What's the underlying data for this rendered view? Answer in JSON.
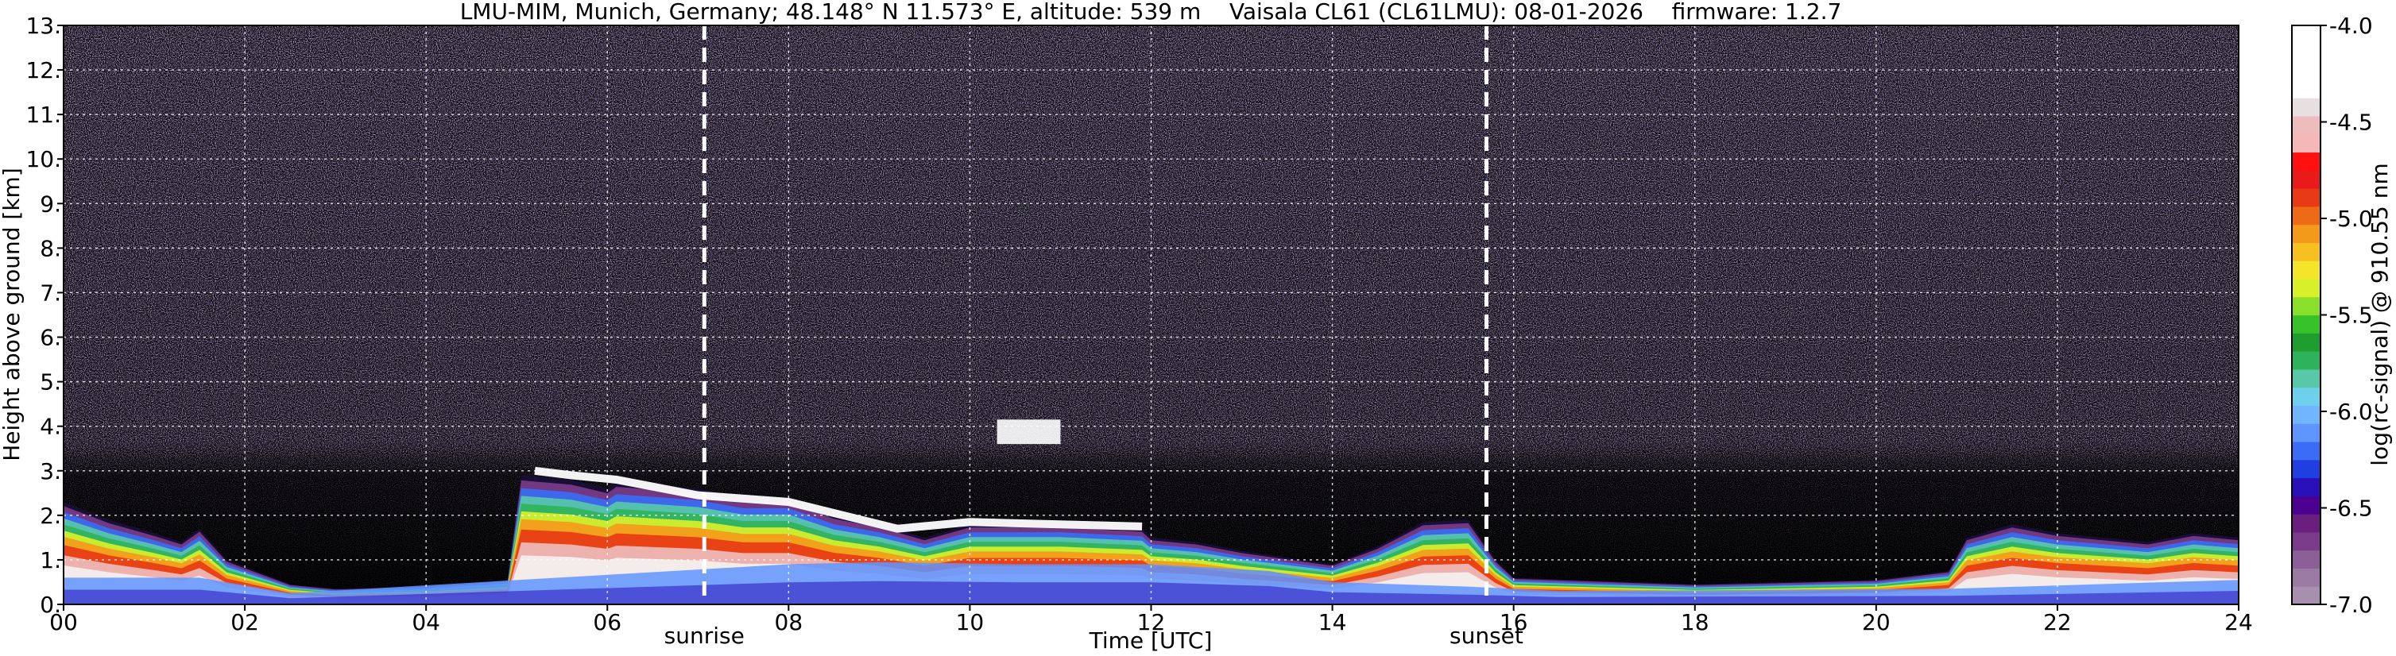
{
  "chart_data": {
    "type": "heatmap",
    "title": "LMU-MIM, Munich, Germany; 48.148° N 11.573° E, altitude: 539 m    Vaisala CL61 (CL61LMU): 08-01-2026    firmware: 1.2.7",
    "xlabel": "Time [UTC]",
    "ylabel": "Height above ground [km]",
    "xlim": [
      0,
      24
    ],
    "ylim": [
      0,
      13
    ],
    "x_ticks": [
      "00",
      "02",
      "04",
      "06",
      "08",
      "10",
      "12",
      "14",
      "16",
      "18",
      "20",
      "22",
      "24"
    ],
    "y_ticks": [
      "0.",
      "1.",
      "2.",
      "3.",
      "4.",
      "5.",
      "6.",
      "7.",
      "8.",
      "9.",
      "10.",
      "11.",
      "12.",
      "13."
    ],
    "grid": true,
    "colorbar": {
      "label": "log(rc-signal) @ 910.55 nm",
      "range": [
        -7.0,
        -4.0
      ],
      "ticks": [
        "-4.0",
        "-4.5",
        "-5.0",
        "-5.5",
        "-6.0",
        "-6.5",
        "-7.0"
      ],
      "colors": [
        "#a98faf",
        "#9b7aa4",
        "#8c5f97",
        "#7a3c88",
        "#6a1f7f",
        "#4b0090",
        "#2a10b8",
        "#1f3fe0",
        "#3a6cf5",
        "#5f95ff",
        "#72b5ff",
        "#6fd0ee",
        "#58c8a8",
        "#2fb35a",
        "#1f9e2f",
        "#37c22a",
        "#8adf2a",
        "#d8f02a",
        "#f4e52a",
        "#f6c021",
        "#f49a1a",
        "#ef6a16",
        "#e83a14",
        "#e81a1a",
        "#ff1010",
        "#f4b8b8",
        "#eebcbc",
        "#e8e0e0",
        "#ffffff",
        "#ffffff",
        "#ffffff",
        "#ffffff"
      ]
    },
    "events": [
      {
        "label": "sunrise",
        "time": 7.07
      },
      {
        "label": "sunset",
        "time": 15.7
      }
    ],
    "features": {
      "boundary_layer": [
        [
          0,
          2.3
        ],
        [
          0.5,
          1.9
        ],
        [
          1.0,
          1.6
        ],
        [
          1.3,
          1.4
        ],
        [
          1.5,
          1.7
        ],
        [
          1.8,
          1.0
        ],
        [
          2.5,
          0.45
        ],
        [
          3.0,
          0.35
        ],
        [
          4.0,
          0.4
        ],
        [
          4.9,
          0.55
        ],
        [
          5.05,
          2.9
        ],
        [
          5.6,
          2.8
        ],
        [
          6.0,
          2.6
        ],
        [
          6.1,
          2.75
        ],
        [
          7.0,
          2.6
        ],
        [
          7.5,
          2.4
        ],
        [
          8.0,
          2.4
        ],
        [
          8.5,
          2.0
        ],
        [
          9.0,
          1.8
        ],
        [
          9.5,
          1.5
        ],
        [
          10.0,
          1.8
        ],
        [
          11.0,
          1.8
        ],
        [
          11.9,
          1.7
        ],
        [
          12.0,
          1.5
        ],
        [
          12.5,
          1.4
        ],
        [
          13.0,
          1.2
        ],
        [
          14.0,
          0.9
        ],
        [
          14.5,
          1.3
        ],
        [
          15.0,
          1.85
        ],
        [
          15.5,
          1.9
        ],
        [
          15.8,
          1.0
        ],
        [
          16.0,
          0.6
        ],
        [
          18.0,
          0.45
        ],
        [
          20.0,
          0.55
        ],
        [
          20.8,
          0.75
        ],
        [
          21.0,
          1.5
        ],
        [
          21.5,
          1.8
        ],
        [
          22.0,
          1.6
        ],
        [
          22.5,
          1.5
        ],
        [
          23.0,
          1.4
        ],
        [
          23.5,
          1.6
        ],
        [
          24,
          1.5
        ]
      ],
      "cloud_base_layer": [
        [
          5.2,
          3.0
        ],
        [
          5.6,
          2.9
        ],
        [
          6.1,
          2.8
        ],
        [
          7.0,
          2.45
        ],
        [
          8.0,
          2.3
        ],
        [
          8.6,
          2.0
        ],
        [
          9.2,
          1.7
        ],
        [
          10.0,
          1.85
        ],
        [
          11.9,
          1.75
        ]
      ],
      "fog_layer": [
        [
          0,
          0.6
        ],
        [
          1.5,
          0.6
        ],
        [
          2.5,
          0.25
        ],
        [
          8.0,
          0.9
        ],
        [
          9.0,
          0.95
        ],
        [
          10.5,
          0.9
        ],
        [
          12.0,
          0.9
        ],
        [
          13.3,
          0.75
        ],
        [
          14.0,
          0.5
        ],
        [
          15.5,
          0.4
        ],
        [
          16.5,
          0.3
        ],
        [
          20.8,
          0.35
        ],
        [
          24,
          0.55
        ]
      ],
      "elevated_cloud": {
        "time": [
          10.3,
          11.0
        ],
        "height": [
          3.6,
          4.15
        ]
      }
    }
  }
}
